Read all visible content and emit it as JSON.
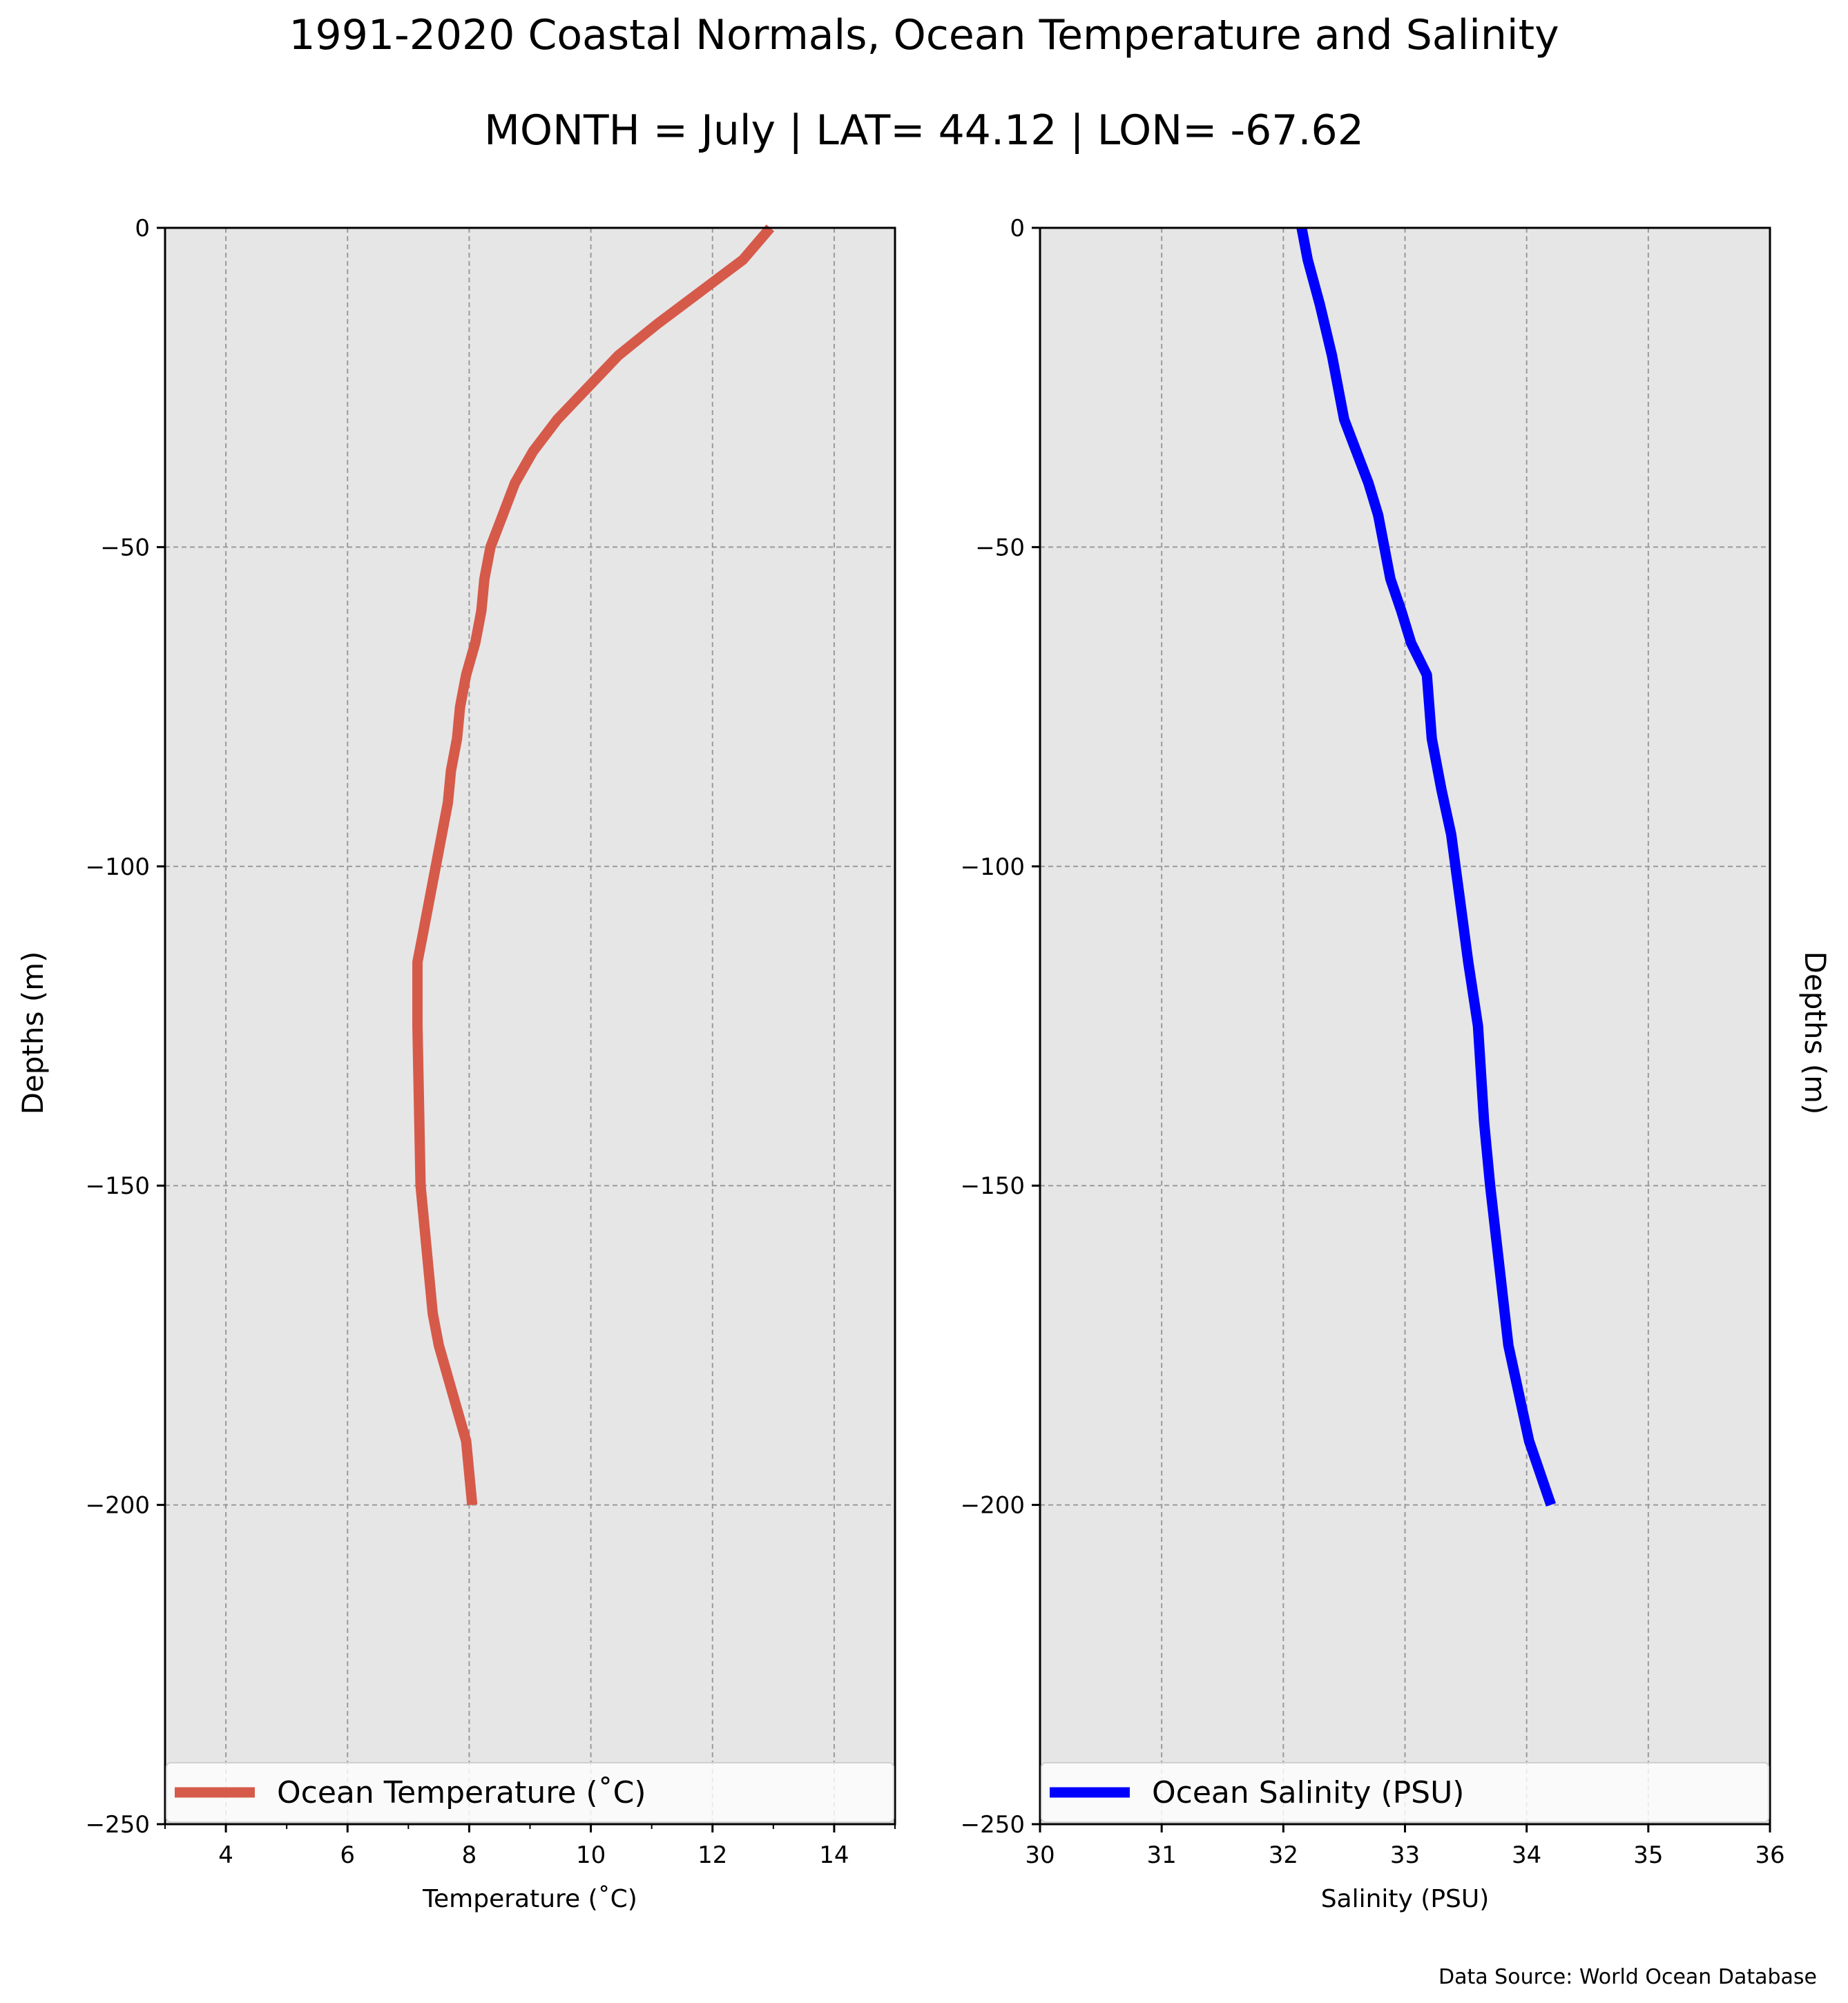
{
  "figure": {
    "title": "1991-2020 Coastal Normals, Ocean Temperature and Salinity",
    "subtitle": "MONTH = July | LAT= 44.12 | LON= -67.62",
    "source_note": "Data Source: World Ocean Database"
  },
  "chart_data": [
    {
      "type": "line",
      "xlabel": "Temperature ($^\\circ$C)",
      "xlabel_display": "Temperature (˚C)",
      "ylabel": "Depths (m)",
      "xlim": [
        3,
        15
      ],
      "ylim": [
        -250,
        0
      ],
      "xticks": [
        "4",
        "6",
        "8",
        "10",
        "12",
        "14"
      ],
      "xtick_values": [
        4,
        6,
        8,
        10,
        12,
        14
      ],
      "yticks": [
        "0",
        "−50",
        "−100",
        "−150",
        "−200",
        "−250"
      ],
      "ytick_values": [
        0,
        -50,
        -100,
        -150,
        -200,
        -250
      ],
      "grid": true,
      "legend": "bottom",
      "series": [
        {
          "name": "Ocean Temperature ($^\\circ$C)",
          "label_display": "Ocean Temperature (˚C)",
          "color": "#d65a4a",
          "x": [
            12.95,
            12.5,
            11.8,
            11.1,
            10.45,
            9.95,
            9.45,
            9.05,
            8.75,
            8.55,
            8.35,
            8.25,
            8.2,
            8.1,
            7.95,
            7.85,
            7.8,
            7.7,
            7.65,
            7.55,
            7.45,
            7.35,
            7.25,
            7.15,
            7.15,
            7.2,
            7.3,
            7.4,
            7.5,
            7.65,
            7.8,
            7.95,
            8.05
          ],
          "y": [
            0,
            -5,
            -10,
            -15,
            -20,
            -25,
            -30,
            -35,
            -40,
            -45,
            -50,
            -55,
            -60,
            -65,
            -70,
            -75,
            -80,
            -85,
            -90,
            -95,
            -100,
            -105,
            -110,
            -115,
            -125,
            -150,
            -160,
            -170,
            -175,
            -180,
            -185,
            -190,
            -200
          ]
        }
      ]
    },
    {
      "type": "line",
      "xlabel": "Salinity (PSU)",
      "ylabel": "Depths (m)",
      "xlim": [
        30,
        36
      ],
      "ylim": [
        -250,
        0
      ],
      "xticks": [
        "30",
        "31",
        "32",
        "33",
        "34",
        "35",
        "36"
      ],
      "xtick_values": [
        30,
        31,
        32,
        33,
        34,
        35,
        36
      ],
      "yticks": [
        "0",
        "−50",
        "−100",
        "−150",
        "−200",
        "−250"
      ],
      "ytick_values": [
        0,
        -50,
        -100,
        -150,
        -200,
        -250
      ],
      "grid": true,
      "legend": "bottom",
      "series": [
        {
          "name": "Ocean Salinity (PSU)",
          "color": "#0000ff",
          "x": [
            32.15,
            32.2,
            32.3,
            32.4,
            32.5,
            32.6,
            32.7,
            32.78,
            32.88,
            32.97,
            33.05,
            33.18,
            33.22,
            33.3,
            33.38,
            33.45,
            33.52,
            33.6,
            33.65,
            33.7,
            33.85,
            34.02,
            34.2
          ],
          "y": [
            0,
            -5,
            -12,
            -20,
            -30,
            -35,
            -40,
            -45,
            -55,
            -60,
            -65,
            -70,
            -80,
            -88,
            -95,
            -105,
            -115,
            -125,
            -140,
            -150,
            -175,
            -190,
            -200
          ]
        }
      ]
    }
  ]
}
